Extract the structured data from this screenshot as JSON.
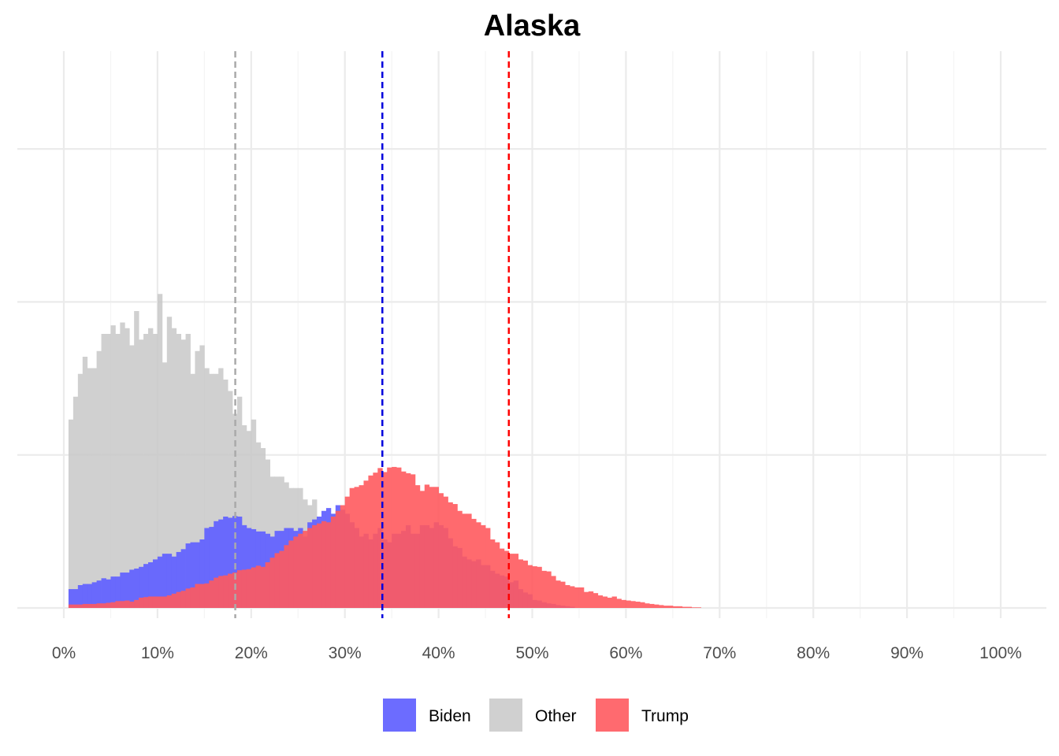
{
  "chart_data": {
    "type": "histogram",
    "title": "Alaska",
    "xlabel": "",
    "ylabel": "",
    "xlim": [
      0,
      1
    ],
    "x_ticks": [
      0,
      0.1,
      0.2,
      0.3,
      0.4,
      0.5,
      0.6,
      0.7,
      0.8,
      0.9,
      1.0
    ],
    "x_tick_labels": [
      "0%",
      "10%",
      "20%",
      "30%",
      "40%",
      "50%",
      "60%",
      "70%",
      "80%",
      "90%",
      "100%"
    ],
    "y_tick_labels_shown": false,
    "grid": true,
    "bin_width": 0.005,
    "bin_start": 0.005,
    "legend_position": "bottom",
    "series": [
      {
        "name": "Other",
        "color": "#C8C8C8",
        "opacity": 0.85,
        "mean_line": 0.183,
        "mean_line_color": "#AAAAAA",
        "counts": [
          330,
          370,
          410,
          440,
          420,
          420,
          450,
          480,
          480,
          495,
          480,
          500,
          490,
          460,
          520,
          470,
          480,
          490,
          480,
          550,
          430,
          510,
          490,
          480,
          470,
          480,
          410,
          450,
          460,
          420,
          410,
          410,
          420,
          400,
          380,
          340,
          370,
          320,
          310,
          330,
          290,
          280,
          260,
          230,
          230,
          230,
          220,
          210,
          210,
          210,
          190,
          180,
          190,
          140,
          130,
          90,
          70,
          50,
          40,
          30,
          30,
          15,
          10,
          8,
          5,
          3,
          2,
          0,
          0
        ]
      },
      {
        "name": "Biden",
        "color": "#6464FF",
        "opacity": 0.95,
        "mean_line": 0.34,
        "mean_line_color": "#0000DD",
        "counts": [
          33,
          33,
          40,
          42,
          42,
          45,
          48,
          52,
          50,
          55,
          55,
          62,
          62,
          67,
          69,
          72,
          77,
          80,
          85,
          90,
          95,
          95,
          90,
          98,
          103,
          113,
          115,
          115,
          120,
          140,
          142,
          152,
          155,
          160,
          158,
          161,
          160,
          145,
          140,
          138,
          134,
          134,
          130,
          125,
          135,
          135,
          140,
          140,
          135,
          140,
          125,
          150,
          155,
          160,
          170,
          175,
          165,
          180,
          172,
          165,
          150,
          140,
          125,
          130,
          120,
          130,
          140,
          120,
          115,
          130,
          130,
          135,
          145,
          130,
          130,
          145,
          145,
          140,
          150,
          145,
          140,
          122,
          108,
          105,
          90,
          85,
          82,
          85,
          75,
          75,
          65,
          60,
          57,
          55,
          45,
          48,
          33,
          27,
          24,
          14,
          13,
          10,
          8,
          7,
          5,
          4,
          3,
          2,
          0
        ]
      },
      {
        "name": "Trump",
        "color": "#FF5A5F",
        "opacity": 0.9,
        "mean_line": 0.475,
        "mean_line_color": "#FF0000",
        "counts": [
          6,
          6,
          6,
          7,
          7,
          7,
          8,
          8,
          9,
          10,
          12,
          12,
          13,
          11,
          14,
          18,
          19,
          20,
          20,
          20,
          20,
          22,
          25,
          28,
          30,
          34,
          36,
          42,
          42,
          43,
          48,
          53,
          56,
          57,
          60,
          62,
          66,
          67,
          68,
          71,
          74,
          72,
          80,
          88,
          96,
          100,
          110,
          118,
          125,
          130,
          135,
          140,
          145,
          148,
          152,
          150,
          160,
          170,
          180,
          195,
          210,
          212,
          215,
          223,
          232,
          237,
          245,
          238,
          246,
          247,
          246,
          239,
          236,
          234,
          215,
          205,
          216,
          212,
          212,
          201,
          195,
          185,
          182,
          170,
          165,
          165,
          156,
          150,
          145,
          140,
          120,
          115,
          104,
          100,
          95,
          95,
          85,
          83,
          75,
          73,
          72,
          65,
          64,
          56,
          48,
          46,
          40,
          38,
          36,
          36,
          28,
          29,
          26,
          22,
          20,
          18,
          20,
          16,
          14,
          13,
          12,
          11,
          10,
          8,
          7,
          6,
          5,
          4,
          4,
          3,
          3,
          2,
          2,
          1,
          1
        ]
      }
    ]
  }
}
